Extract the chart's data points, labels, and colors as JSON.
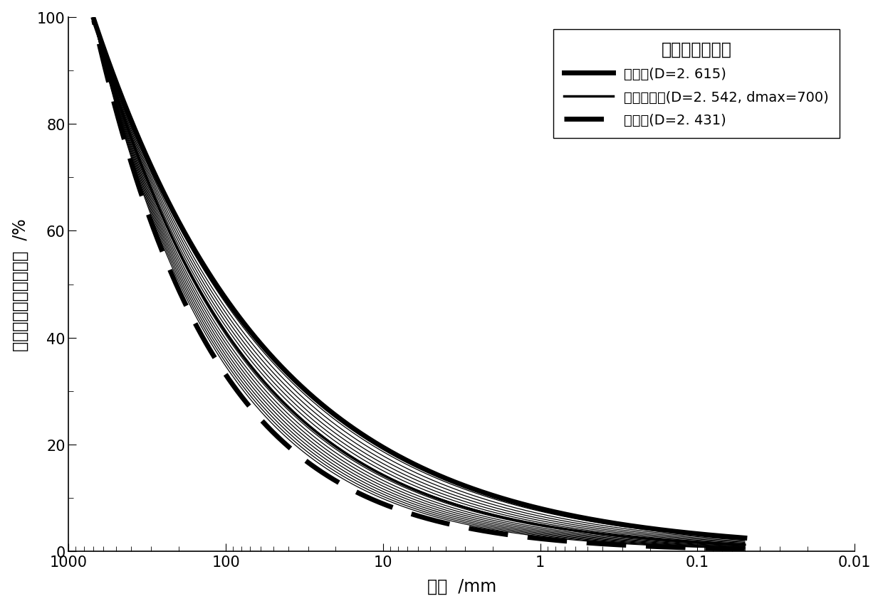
{
  "title": "堆石料填筑级配",
  "xlabel": "粒径  /mm",
  "ylabel": "小于某粒径质量百分比  /%",
  "xmin": 0.01,
  "xmax": 1000,
  "ymin": 0,
  "ymax": 100,
  "upper_D": 2.615,
  "upper_dmax": 700,
  "upper_label": "上包线(D=2. 615)",
  "upper_lw": 5,
  "avg_D": 2.542,
  "avg_dmax": 700,
  "avg_label": "级配平均线(D=2. 542, dmax=700)",
  "avg_lw": 2.5,
  "lower_D": 2.431,
  "lower_dmax": 700,
  "lower_label": "下包线(D=2. 431)",
  "lower_lw": 5,
  "sample_D_values": [
    2.455,
    2.465,
    2.475,
    2.485,
    2.495,
    2.505,
    2.515,
    2.525,
    2.535,
    2.545,
    2.555,
    2.565,
    2.575,
    2.585,
    2.595,
    2.605
  ],
  "sample_dmax": 700,
  "sample_lw": 0.9,
  "line_color": "#000000",
  "background_color": "#ffffff",
  "legend_title_fontsize": 17,
  "legend_fontsize": 14,
  "axis_label_fontsize": 17,
  "tick_fontsize": 15
}
